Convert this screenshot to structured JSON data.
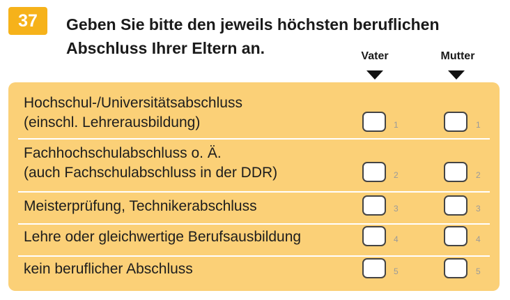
{
  "question": {
    "number": "37",
    "text_line1": "Geben Sie bitte den jeweils höchsten beruflichen",
    "text_line2": "Abschluss Ihrer Eltern an."
  },
  "columns": [
    {
      "label": "Vater"
    },
    {
      "label": "Mutter"
    }
  ],
  "options": [
    {
      "line1": "Hochschul-/Universitätsabschluss",
      "line2": "(einschl. Lehrerausbildung)",
      "code": "1"
    },
    {
      "line1": "Fachhochschulabschluss o. Ä.",
      "line2": "(auch Fachschulabschluss in der DDR)",
      "code": "2"
    },
    {
      "line1": "Meisterprüfung, Technikerabschluss",
      "line2": "",
      "code": "3"
    },
    {
      "line1": "Lehre oder gleichwertige Berufsausbildung",
      "line2": "",
      "code": "4"
    },
    {
      "line1": "kein beruflicher Abschluss",
      "line2": "",
      "code": "5"
    }
  ],
  "colors": {
    "badge": "#f6b21a",
    "panel": "#fbd077"
  }
}
